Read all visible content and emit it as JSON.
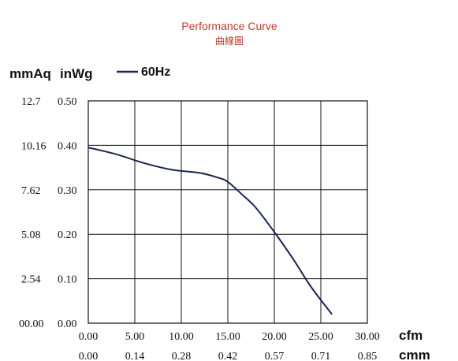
{
  "chart_data": {
    "type": "line",
    "title": "Performance Curve",
    "subtitle": "曲線圖",
    "ylabel_primary": "mmAq",
    "ylabel_secondary": "inWg",
    "xlabel_primary": "cfm",
    "xlabel_secondary": "cmm",
    "x_ticks_cfm": [
      "0.00",
      "5.00",
      "10.00",
      "15.00",
      "20.00",
      "25.00",
      "30.00"
    ],
    "x_ticks_cmm": [
      "0.00",
      "0.14",
      "0.28",
      "0.42",
      "0.57",
      "0.71",
      "0.85"
    ],
    "y_ticks_inwg": [
      "0.00",
      "0.10",
      "0.20",
      "0.30",
      "0.40",
      "0.50"
    ],
    "y_ticks_mmaq": [
      "00.00",
      "2.54",
      "5.08",
      "7.62",
      "10.16",
      "12.7"
    ],
    "xlim": [
      0,
      30
    ],
    "ylim": [
      0,
      0.5
    ],
    "grid": true,
    "legend_position": "top-left",
    "series": [
      {
        "name": "60Hz",
        "color": "#1b2651",
        "x": [
          0,
          3,
          6,
          9,
          12,
          14,
          15,
          16.5,
          18,
          20,
          22,
          24,
          26.2
        ],
        "y": [
          0.395,
          0.38,
          0.36,
          0.345,
          0.338,
          0.327,
          0.318,
          0.29,
          0.26,
          0.205,
          0.145,
          0.08,
          0.02
        ]
      }
    ]
  },
  "colors": {
    "title": "#c0392b",
    "grid": "#111111"
  }
}
